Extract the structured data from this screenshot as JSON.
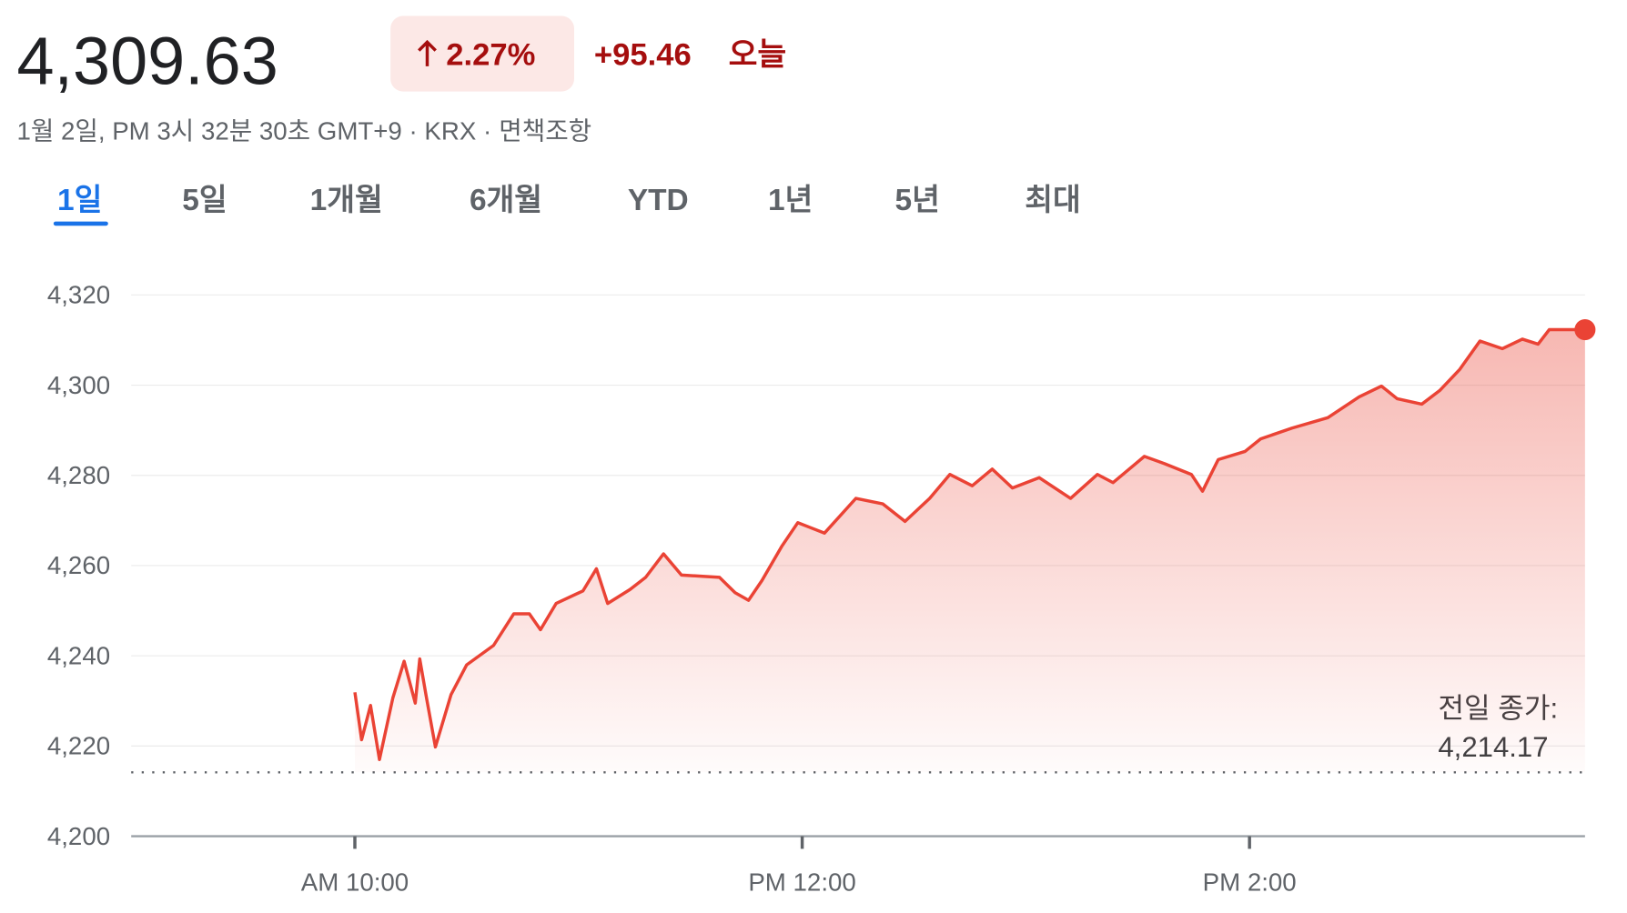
{
  "header": {
    "price": "4,309.63",
    "change_pct": "2.27%",
    "change_abs": "+95.46",
    "change_period": "오늘",
    "timestamp": "1월 2일, PM 3시 32분 30초 GMT+9 · KRX ·",
    "disclaimer": "면책조항"
  },
  "tabs": [
    "1일",
    "5일",
    "1개월",
    "6개월",
    "YTD",
    "1년",
    "5년",
    "최대"
  ],
  "selected_tab": "1일",
  "chart_data": {
    "type": "line",
    "color": "#ea4335",
    "x": [
      10.0,
      10.03,
      10.07,
      10.11,
      10.17,
      10.22,
      10.27,
      10.29,
      10.32,
      10.36,
      10.43,
      10.5,
      10.62,
      10.71,
      10.78,
      10.83,
      10.9,
      11.02,
      11.08,
      11.13,
      11.23,
      11.3,
      11.38,
      11.46,
      11.63,
      11.7,
      11.76,
      11.82,
      11.91,
      11.98,
      12.1,
      12.24,
      12.36,
      12.46,
      12.57,
      12.66,
      12.76,
      12.85,
      12.94,
      13.06,
      13.2,
      13.32,
      13.39,
      13.53,
      13.62,
      13.74,
      13.79,
      13.86,
      13.98,
      14.05,
      14.19,
      14.35,
      14.49,
      14.59,
      14.66,
      14.77,
      14.85,
      14.94,
      15.03,
      15.13,
      15.22,
      15.29,
      15.34,
      15.5
    ],
    "values": [
      4231.9,
      4221.4,
      4229,
      4217,
      4230.7,
      4238.8,
      4229.5,
      4239.3,
      4230.7,
      4219.8,
      4231.4,
      4238,
      4242.3,
      4249.3,
      4249.3,
      4245.8,
      4251.6,
      4254.4,
      4259.3,
      4251.6,
      4254.7,
      4257.4,
      4262.6,
      4257.9,
      4257.4,
      4254,
      4252.3,
      4256.7,
      4264.4,
      4269.5,
      4267.2,
      4274.9,
      4273.7,
      4269.8,
      4274.9,
      4280.2,
      4277.7,
      4281.4,
      4277.2,
      4279.5,
      4274.9,
      4280.2,
      4278.4,
      4284.2,
      4282.6,
      4280.2,
      4276.5,
      4283.5,
      4285.3,
      4288.1,
      4290.5,
      4292.8,
      4297.4,
      4299.8,
      4297,
      4295.8,
      4298.8,
      4303.5,
      4309.8,
      4308.1,
      4310.2,
      4309.1,
      4312.3,
      4312.3
    ],
    "xlim": [
      9,
      15.5
    ],
    "xticks": [
      {
        "value": 10,
        "label": "AM 10:00"
      },
      {
        "value": 12,
        "label": "PM 12:00"
      },
      {
        "value": 14,
        "label": "PM 2:00"
      }
    ],
    "ylim": [
      4200,
      4320
    ],
    "yticks": [
      {
        "value": 4200,
        "label": "4,200"
      },
      {
        "value": 4220,
        "label": "4,220"
      },
      {
        "value": 4240,
        "label": "4,240"
      },
      {
        "value": 4260,
        "label": "4,260"
      },
      {
        "value": 4280,
        "label": "4,280"
      },
      {
        "value": 4300,
        "label": "4,300"
      },
      {
        "value": 4320,
        "label": "4,320"
      }
    ],
    "grid": true,
    "reference_line": {
      "title": "전일 종가:",
      "value": 4214.17,
      "label": "4,214.17"
    }
  }
}
